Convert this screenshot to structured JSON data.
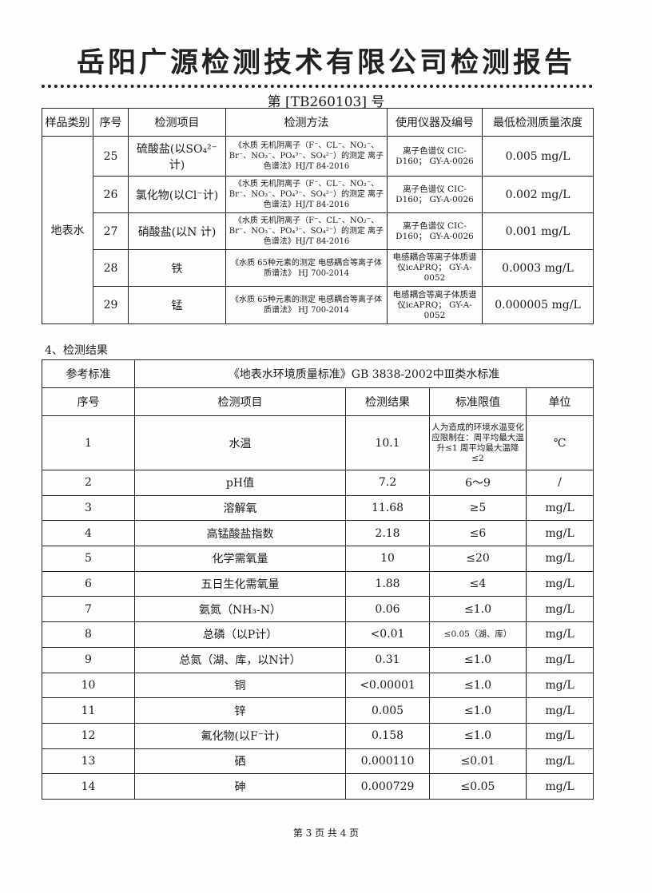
{
  "header": {
    "title": "岳阳广源检测技术有限公司检测报告",
    "report_no": "第 [TB260103] 号"
  },
  "method_table": {
    "columns": [
      "样品类别",
      "序号",
      "检测项目",
      "检测方法",
      "使用仪器及编号",
      "最低检测质量浓度"
    ],
    "sample_type": "地表水",
    "rows": [
      {
        "no": "25",
        "item": "硫酸盐(以SO₄²⁻计)",
        "method": "《水质 无机阴离子（F⁻、CL⁻、NO₂⁻、Br⁻、NO₃⁻、PO₄³⁻、SO₄²⁻）的测定 离子色谱法》HJ/T 84-2016",
        "instrument": "离子色谱仪 CIC-D160； GY-A-0026",
        "limit": "0.005 mg/L"
      },
      {
        "no": "26",
        "item": "氯化物(以Cl⁻计)",
        "method": "《水质 无机阴离子（F⁻、CL⁻、NO₂⁻、Br⁻、NO₃⁻、PO₄³⁻、SO₄²⁻）的测定 离子色谱法》HJ/T 84-2016",
        "instrument": "离子色谱仪 CIC-D160； GY-A-0026",
        "limit": "0.002 mg/L"
      },
      {
        "no": "27",
        "item": "硝酸盐(以N 计)",
        "method": "《水质 无机阴离子（F⁻、CL⁻、NO₂⁻、Br⁻、NO₃⁻、PO₄³⁻、SO₄²⁻）的测定 离子色谱法》HJ/T 84-2016",
        "instrument": "离子色谱仪 CIC-D160； GY-A-0026",
        "limit": "0.001 mg/L"
      },
      {
        "no": "28",
        "item": "铁",
        "method": "《水质 65种元素的测定 电感耦合等离子体质谱法》 HJ 700-2014",
        "instrument": "电感耦合等离子体质谱仪icAPRQ； GY-A-0052",
        "limit": "0.0003 mg/L"
      },
      {
        "no": "29",
        "item": "锰",
        "method": "《水质 65种元素的测定 电感耦合等离子体质谱法》 HJ 700-2014",
        "instrument": "电感耦合等离子体质谱仪icAPRQ； GY-A-0052",
        "limit": "0.000005 mg/L"
      }
    ]
  },
  "results": {
    "section_title": "4、检测结果",
    "ref_label": "参考标准",
    "ref_value": "《地表水环境质量标准》GB 3838-2002中Ⅲ类水标准",
    "columns": [
      "序号",
      "检测项目",
      "检测结果",
      "标准限值",
      "单位"
    ],
    "rows": [
      {
        "no": "1",
        "item": "水温",
        "result": "10.1",
        "limit": "人为造成的环境水温变化应限制在：周平均最大温升≤1 周平均最大温降≤2",
        "unit": "℃"
      },
      {
        "no": "2",
        "item": "pH值",
        "result": "7.2",
        "limit": "6～9",
        "unit": "/"
      },
      {
        "no": "3",
        "item": "溶解氧",
        "result": "11.68",
        "limit": "≥5",
        "unit": "mg/L"
      },
      {
        "no": "4",
        "item": "高锰酸盐指数",
        "result": "2.18",
        "limit": "≤6",
        "unit": "mg/L"
      },
      {
        "no": "5",
        "item": "化学需氧量",
        "result": "10",
        "limit": "≤20",
        "unit": "mg/L"
      },
      {
        "no": "6",
        "item": "五日生化需氧量",
        "result": "1.88",
        "limit": "≤4",
        "unit": "mg/L"
      },
      {
        "no": "7",
        "item": "氨氮（NH₃-N）",
        "result": "0.06",
        "limit": "≤1.0",
        "unit": "mg/L"
      },
      {
        "no": "8",
        "item": "总磷（以P计）",
        "result": "<0.01",
        "limit": "≤0.05（湖、库）",
        "unit": "mg/L"
      },
      {
        "no": "9",
        "item": "总氮（湖、库，以N计）",
        "result": "0.31",
        "limit": "≤1.0",
        "unit": "mg/L"
      },
      {
        "no": "10",
        "item": "铜",
        "result": "<0.00001",
        "limit": "≤1.0",
        "unit": "mg/L"
      },
      {
        "no": "11",
        "item": "锌",
        "result": "0.005",
        "limit": "≤1.0",
        "unit": "mg/L"
      },
      {
        "no": "12",
        "item": "氟化物(以F⁻计)",
        "result": "0.158",
        "limit": "≤1.0",
        "unit": "mg/L"
      },
      {
        "no": "13",
        "item": "硒",
        "result": "0.000110",
        "limit": "≤0.01",
        "unit": "mg/L"
      },
      {
        "no": "14",
        "item": "砷",
        "result": "0.000729",
        "limit": "≤0.05",
        "unit": "mg/L"
      }
    ]
  },
  "footer": {
    "page": "第 3 页  共 4 页"
  }
}
